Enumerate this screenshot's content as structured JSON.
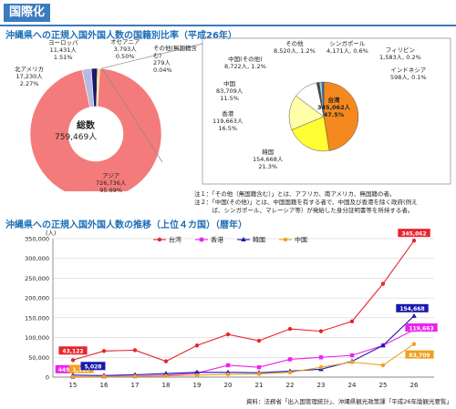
{
  "header": {
    "title": "国際化"
  },
  "section1": {
    "title": "沖縄県への正規入国外国人数の国籍別比率（平成26年）"
  },
  "main_pie": {
    "center_label": "総数",
    "center_value": "759,469人",
    "slices": [
      {
        "name": "アジア",
        "value": "726,736人",
        "pct": "95.69%",
        "share": 95.69,
        "color": "#f47b7b"
      },
      {
        "name": "北アメリカ",
        "value": "17,230人",
        "pct": "2.27%",
        "share": 2.27,
        "color": "#b9b9e6"
      },
      {
        "name": "ヨーロッパ",
        "value": "11,431人",
        "pct": "1.51%",
        "share": 1.51,
        "color": "#1a1a66"
      },
      {
        "name": "オセアニア",
        "value": "3,793人",
        "pct": "0.50%",
        "share": 0.5,
        "color": "#ffd24d"
      },
      {
        "name": "その他(無国籍含む)",
        "value": "279人",
        "pct": "0.04%",
        "share": 0.04,
        "color": "#c8e6ff"
      }
    ]
  },
  "sub_pie": {
    "slices": [
      {
        "name": "台湾",
        "value": "345,062人",
        "pct": "47.5%",
        "share": 47.5,
        "color": "#f5891f"
      },
      {
        "name": "韓国",
        "value": "154,668人",
        "pct": "21.3%",
        "share": 21.3,
        "color": "#ffff33"
      },
      {
        "name": "香港",
        "value": "119,663人",
        "pct": "16.5%",
        "share": 16.5,
        "color": "#ffffaa"
      },
      {
        "name": "中国",
        "value": "83,709人",
        "pct": "11.5%",
        "share": 11.5,
        "color": "#ffffff"
      },
      {
        "name": "中国(その他)",
        "value": "8,722人",
        "pct": "1.2%",
        "share": 1.2,
        "color": "#444444"
      },
      {
        "name": "その他",
        "value": "8,520人",
        "pct": "1.2%",
        "share": 1.2,
        "color": "#9ad4ea"
      },
      {
        "name": "シンガポール",
        "value": "4,171人",
        "pct": "0.6%",
        "share": 0.6,
        "color": "#1e90ff"
      },
      {
        "name": "フィリピン",
        "value": "1,583人",
        "pct": "0.2%",
        "share": 0.2,
        "color": "#66cc99"
      },
      {
        "name": "インドネシア",
        "value": "598人",
        "pct": "0.1%",
        "share": 0.1,
        "color": "#ff66aa"
      }
    ]
  },
  "notes": [
    "注１：「その他（無国籍含む）」とは、アフリカ、南アメリカ、無国籍の者。",
    "注２：「中国(その他)」とは、中国国籍を有する者で、中国及び香港を除く政府(例え",
    "　　　ば、シンガポール、マレーシア等）が発給した身分証明書等を所持する者。"
  ],
  "section2": {
    "title": "沖縄県への正規入国外国人数の推移（上位４カ国）（暦年）"
  },
  "source": "資料：法務省「出入国管理統計」、沖縄県観光政策課「平成26年版観光要覧」",
  "chart_data": {
    "type": "line",
    "ylabel": "(人)",
    "ylim": [
      0,
      350000
    ],
    "yticks": [
      0,
      50000,
      100000,
      150000,
      200000,
      250000,
      300000,
      350000
    ],
    "ytick_labels": [
      "0",
      "50,000",
      "100,000",
      "150,000",
      "200,000",
      "250,000",
      "300,000",
      "350,000"
    ],
    "x": [
      "15",
      "16",
      "17",
      "18",
      "19",
      "20",
      "21",
      "22",
      "23",
      "24",
      "25",
      "26"
    ],
    "legend_position": "top-center",
    "grid": true,
    "series": [
      {
        "name": "台湾",
        "color": "#e8242c",
        "marker": "circle",
        "values": [
          43122,
          66000,
          68000,
          40000,
          80000,
          108000,
          92000,
          122000,
          116000,
          141000,
          236000,
          345062
        ]
      },
      {
        "name": "香港",
        "color": "#ee22ee",
        "marker": "square",
        "values": [
          449,
          1500,
          2500,
          5000,
          10000,
          30000,
          25000,
          45000,
          50000,
          55000,
          80000,
          119663
        ]
      },
      {
        "name": "韓国",
        "color": "#1a1ab0",
        "marker": "triangle",
        "values": [
          5028,
          4000,
          6000,
          9000,
          12000,
          12000,
          11000,
          15000,
          20000,
          40000,
          80000,
          154668
        ]
      },
      {
        "name": "中国",
        "color": "#f0a020",
        "marker": "circle",
        "values": [
          1110,
          1500,
          2000,
          3000,
          5000,
          7000,
          8000,
          12000,
          25000,
          38000,
          30000,
          83709
        ]
      }
    ],
    "data_labels": [
      {
        "series": "台湾",
        "x": "15",
        "text": "43,122",
        "bg": "#e8242c"
      },
      {
        "series": "香港",
        "x": "15",
        "text": "449",
        "bg": "#ee22ee"
      },
      {
        "series": "中国",
        "x": "15",
        "text": "1,110",
        "bg": "#f0a020"
      },
      {
        "series": "韓国",
        "x": "16",
        "text": "5,028",
        "bg": "#1a1ab0"
      },
      {
        "series": "台湾",
        "x": "26",
        "text": "345,062",
        "bg": "#e8242c"
      },
      {
        "series": "韓国",
        "x": "26",
        "text": "154,668",
        "bg": "#1a1ab0"
      },
      {
        "series": "香港",
        "x": "26",
        "text": "119,663",
        "bg": "#ee22ee"
      },
      {
        "series": "中国",
        "x": "26",
        "text": "83,709",
        "bg": "#f0a020"
      }
    ]
  }
}
